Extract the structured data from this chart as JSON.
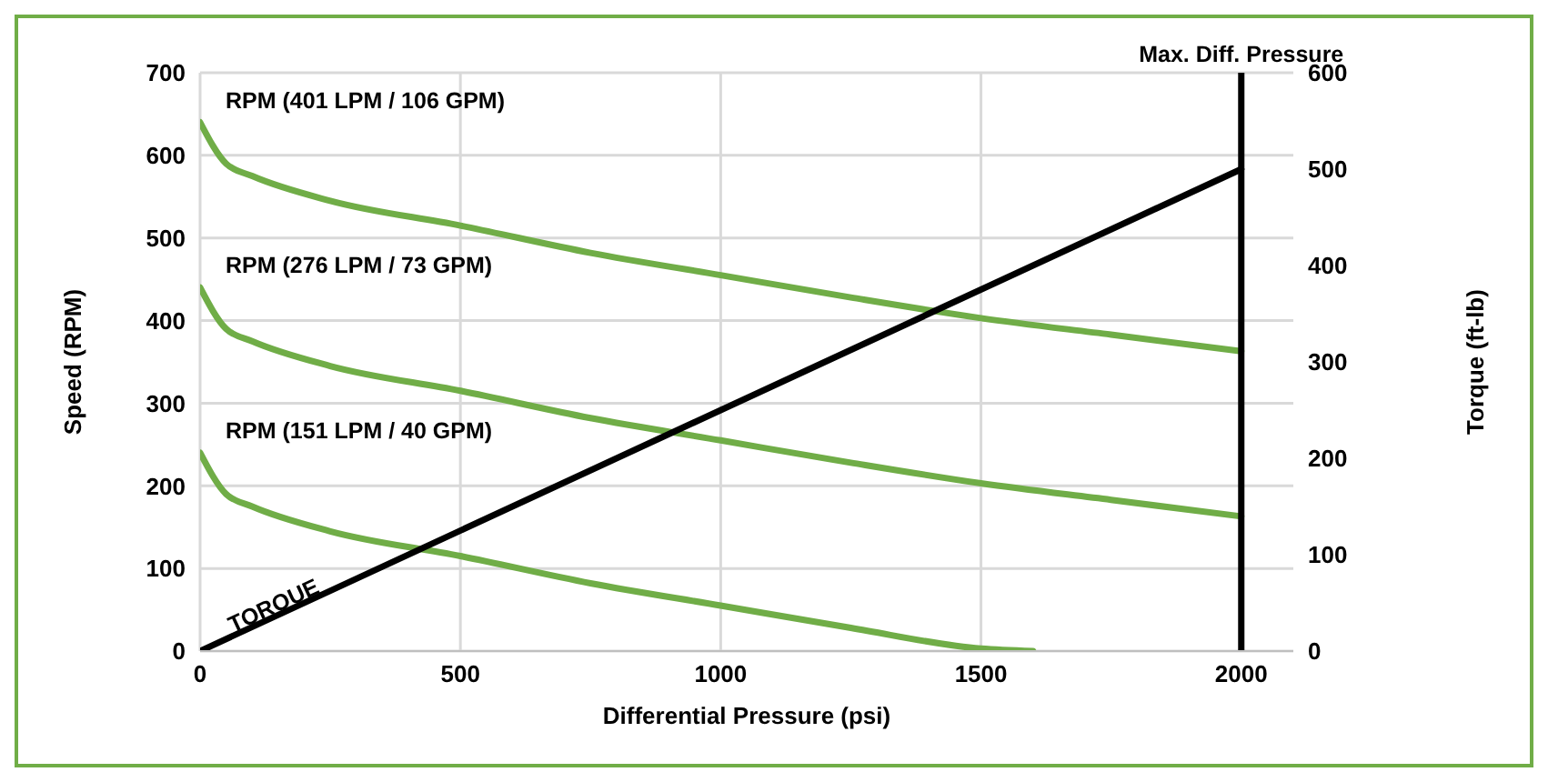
{
  "chart_data": {
    "type": "line",
    "xlabel": "Differential Pressure (psi)",
    "ylabel": "Speed (RPM)",
    "y2label": "Torque (ft-lb)",
    "xlim": [
      0,
      2100
    ],
    "xticks": [
      0,
      500,
      1000,
      1500,
      2000
    ],
    "ylim": [
      0,
      700
    ],
    "yticks": [
      0,
      100,
      200,
      300,
      400,
      500,
      600,
      700
    ],
    "y2lim": [
      0,
      600
    ],
    "y2ticks": [
      0,
      100,
      200,
      300,
      400,
      500,
      600
    ],
    "grid": true,
    "marker": "none",
    "line_style": "solid",
    "series": [
      {
        "name": "RPM (401 LPM / 106 GPM)",
        "color": "#70ad47",
        "x": [
          0,
          50,
          100,
          250,
          500,
          750,
          1000,
          1250,
          1500,
          1750,
          2000
        ],
        "values": [
          640,
          590,
          575,
          545,
          515,
          482,
          455,
          428,
          403,
          383,
          363
        ]
      },
      {
        "name": "RPM (276 LPM / 73 GPM)",
        "color": "#70ad47",
        "x": [
          0,
          50,
          100,
          250,
          500,
          750,
          1000,
          1250,
          1500,
          1750,
          2000
        ],
        "values": [
          440,
          390,
          375,
          345,
          315,
          282,
          255,
          228,
          203,
          183,
          163
        ]
      },
      {
        "name": "RPM (151 LPM / 40 GPM)",
        "color": "#70ad47",
        "x": [
          0,
          50,
          100,
          250,
          500,
          750,
          1000,
          1250,
          1500,
          1600
        ],
        "values": [
          240,
          190,
          175,
          145,
          115,
          82,
          55,
          28,
          3,
          0
        ]
      },
      {
        "name": "TORQUE",
        "color": "#000000",
        "axis": "y2",
        "x": [
          0,
          2000
        ],
        "values": [
          0,
          500
        ]
      }
    ],
    "ref_lines": [
      {
        "axis": "x",
        "value": 2000,
        "label": "Max. Diff. Pressure",
        "color": "#000000"
      }
    ]
  }
}
